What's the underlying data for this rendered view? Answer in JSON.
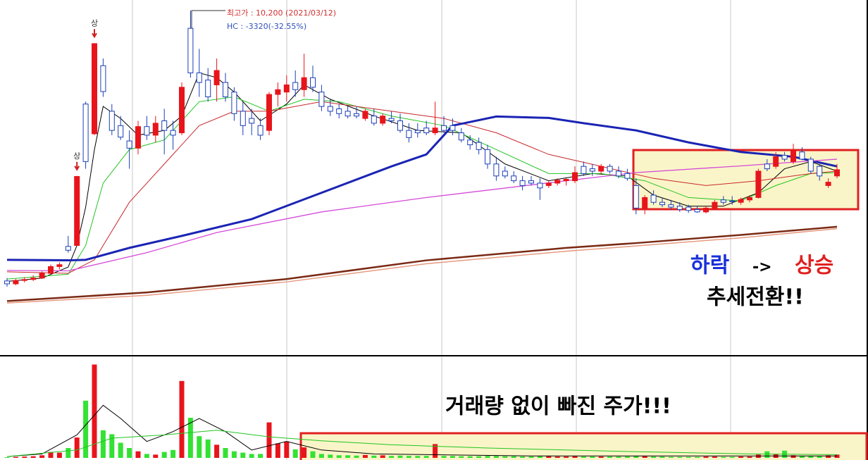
{
  "chart_data": {
    "type": "candlestick",
    "open": [
      4560,
      4500,
      4570,
      4590,
      4620,
      4720,
      4860,
      5280,
      5300,
      8250,
      7630,
      9050,
      8100,
      7800,
      7480,
      7330,
      7780,
      7600,
      7900,
      7700,
      7650,
      9830,
      8900,
      8750,
      8650,
      8700,
      8500,
      8100,
      7950,
      7800,
      7700,
      8450,
      8500,
      8700,
      8550,
      8800,
      8500,
      8200,
      8150,
      8100,
      8050,
      7950,
      8000,
      7850,
      7950,
      7900,
      7700,
      7700,
      7750,
      7650,
      7800,
      7800,
      7650,
      7500,
      7450,
      7300,
      7000,
      6850,
      6750,
      6650,
      6650,
      6600,
      6550,
      6600,
      6650,
      6650,
      6950,
      6900,
      6850,
      6950,
      6850,
      6800,
      6550,
      6080,
      6350,
      6200,
      6150,
      6120,
      6100,
      6050,
      6000,
      6080,
      6250,
      6230,
      6200,
      6250,
      6300,
      7000,
      6950,
      7180,
      7050,
      7250,
      7100,
      6950,
      6550,
      6750
    ],
    "high": [
      4620,
      4600,
      4640,
      4680,
      4760,
      4900,
      4950,
      5500,
      6750,
      8300,
      9520,
      9200,
      8250,
      8000,
      7700,
      7900,
      8000,
      8000,
      8150,
      7900,
      8700,
      10200,
      9400,
      9000,
      9200,
      8900,
      8600,
      8300,
      8150,
      7950,
      8500,
      8700,
      8850,
      8950,
      9300,
      9050,
      8650,
      8350,
      8250,
      8200,
      8200,
      8150,
      8150,
      8050,
      8100,
      8050,
      7850,
      7850,
      7900,
      8300,
      8000,
      7950,
      7750,
      7600,
      7550,
      7400,
      7150,
      6950,
      6850,
      6750,
      6750,
      6700,
      6650,
      6700,
      6700,
      6950,
      7050,
      7000,
      7000,
      7000,
      6950,
      6900,
      6700,
      6350,
      6450,
      6300,
      6250,
      6200,
      6150,
      6130,
      6120,
      6250,
      6330,
      6330,
      6300,
      6350,
      6900,
      7100,
      7250,
      7250,
      7420,
      7350,
      7150,
      7000,
      6700,
      7000
    ],
    "low": [
      4440,
      4470,
      4530,
      4560,
      4600,
      4700,
      4800,
      5150,
      5300,
      6900,
      7600,
      8400,
      7600,
      7500,
      6900,
      7200,
      7500,
      7450,
      7200,
      7300,
      7600,
      8800,
      8400,
      8300,
      8300,
      8300,
      7900,
      7600,
      7600,
      7500,
      7600,
      8200,
      8300,
      8400,
      8400,
      8500,
      8100,
      8000,
      7950,
      7950,
      7950,
      7900,
      7800,
      7800,
      7850,
      7650,
      7450,
      7550,
      7600,
      7600,
      7650,
      7600,
      7450,
      7300,
      7200,
      6900,
      6650,
      6700,
      6600,
      6450,
      6550,
      6250,
      6500,
      6550,
      6550,
      6600,
      6750,
      6750,
      6800,
      6800,
      6700,
      6650,
      5950,
      5950,
      6150,
      6100,
      6050,
      6000,
      5980,
      5980,
      5970,
      6050,
      6150,
      6150,
      6150,
      6200,
      6280,
      6850,
      6900,
      7050,
      7000,
      7080,
      6800,
      6650,
      6500,
      6700
    ],
    "close": [
      4500,
      4570,
      4590,
      4620,
      4720,
      4860,
      4900,
      5200,
      6740,
      7050,
      9510,
      8510,
      7700,
      7560,
      7330,
      7780,
      7600,
      7850,
      7700,
      7600,
      8600,
      8900,
      8700,
      8400,
      8950,
      8400,
      8050,
      7800,
      7850,
      7600,
      8450,
      8550,
      8650,
      8550,
      8800,
      8600,
      8200,
      8100,
      8050,
      8000,
      8000,
      8100,
      7850,
      8000,
      7900,
      7700,
      7550,
      7650,
      7650,
      7750,
      7700,
      7700,
      7500,
      7400,
      7300,
      7000,
      6750,
      6750,
      6650,
      6550,
      6600,
      6500,
      6600,
      6660,
      6680,
      6820,
      6800,
      6850,
      6950,
      6850,
      6750,
      6700,
      6080,
      6300,
      6200,
      6150,
      6100,
      6050,
      6030,
      6000,
      6080,
      6200,
      6200,
      6220,
      6260,
      6300,
      6850,
      6900,
      7150,
      7100,
      7280,
      7100,
      6850,
      6750,
      6620,
      6880
    ],
    "volume": [
      10,
      15,
      20,
      25,
      40,
      90,
      80,
      150,
      310,
      870,
      1420,
      420,
      360,
      230,
      150,
      100,
      60,
      50,
      90,
      120,
      1170,
      610,
      330,
      280,
      200,
      150,
      100,
      80,
      60,
      60,
      540,
      220,
      250,
      130,
      160,
      100,
      60,
      50,
      40,
      40,
      35,
      45,
      35,
      40,
      30,
      35,
      30,
      30,
      30,
      210,
      30,
      30,
      25,
      25,
      25,
      30,
      30,
      25,
      25,
      20,
      20,
      25,
      25,
      20,
      20,
      25,
      20,
      20,
      20,
      20,
      20,
      20,
      30,
      25,
      20,
      20,
      15,
      15,
      15,
      15,
      20,
      20,
      15,
      15,
      20,
      20,
      50,
      100,
      60,
      110,
      40,
      30,
      30,
      25,
      40,
      50
    ],
    "up_color": "#e8141b",
    "down_color": "#1c3fb8",
    "volume_up_color": "#e8141b",
    "volume_down_color": "#33e233",
    "ylim": [
      3000,
      10420
    ],
    "volume_lim": [
      0,
      1500
    ],
    "ma": [
      {
        "color": "#000000",
        "width": 1,
        "x": [
          0,
          4,
          7,
          8,
          9,
          10,
          11,
          13,
          15,
          18,
          20,
          22,
          24,
          26,
          29,
          32,
          34,
          37,
          42,
          47,
          52,
          57,
          62,
          67,
          71,
          74,
          78,
          82,
          86,
          89,
          92,
          95
        ],
        "values": [
          4550,
          4620,
          4850,
          5300,
          6100,
          7300,
          8200,
          7950,
          7600,
          7700,
          8000,
          8900,
          8800,
          8500,
          7900,
          8250,
          8650,
          8350,
          8000,
          7700,
          7650,
          7000,
          6650,
          6800,
          6750,
          6350,
          6120,
          6120,
          6400,
          6900,
          7050,
          6850
        ]
      },
      {
        "color": "#22c422",
        "width": 1,
        "x": [
          0,
          7,
          9,
          11,
          14,
          18,
          22,
          26,
          30,
          34,
          38,
          44,
          50,
          56,
          62,
          68,
          73,
          78,
          84,
          88,
          92,
          95
        ],
        "values": [
          4600,
          4700,
          5300,
          6600,
          7300,
          7500,
          8300,
          8400,
          8100,
          8350,
          8300,
          8000,
          7800,
          7300,
          6800,
          6800,
          6650,
          6300,
          6230,
          6550,
          6800,
          6820
        ]
      },
      {
        "color": "#c8282c",
        "width": 1,
        "x": [
          0,
          7,
          10,
          14,
          18,
          22,
          26,
          30,
          36,
          44,
          50,
          56,
          62,
          68,
          74,
          80,
          86,
          92,
          95
        ],
        "values": [
          4750,
          4720,
          5000,
          6200,
          7000,
          7800,
          8100,
          8100,
          8300,
          8100,
          7950,
          7650,
          7200,
          6950,
          6700,
          6550,
          6650,
          6800,
          6850
        ]
      },
      {
        "color": "#1a24b4",
        "width": 3,
        "x": [
          0,
          7,
          9,
          14,
          20,
          28,
          36,
          44,
          48,
          51,
          56,
          62,
          66,
          72,
          78,
          84,
          90,
          95
        ],
        "values": [
          5000,
          4990,
          5000,
          5250,
          5500,
          5850,
          6400,
          6950,
          7200,
          7800,
          7990,
          7960,
          7850,
          7700,
          7450,
          7250,
          7150,
          6950
        ]
      },
      {
        "color": "#d44ad8",
        "width": 1.3,
        "x": [
          0,
          7,
          16,
          24,
          36,
          48,
          64,
          72,
          84,
          95
        ],
        "values": [
          4780,
          4770,
          5150,
          5570,
          6000,
          6300,
          6650,
          6820,
          6960,
          7100
        ]
      },
      {
        "color": "#e69a80",
        "width": 1.5,
        "x": [
          0,
          16,
          32,
          48,
          64,
          72,
          84,
          95
        ],
        "values": [
          4100,
          4260,
          4540,
          4920,
          5180,
          5290,
          5460,
          5650
        ]
      },
      {
        "color": "#7a2a14",
        "width": 2.5,
        "x": [
          0,
          16,
          32,
          48,
          64,
          72,
          84,
          95
        ],
        "values": [
          4140,
          4320,
          4600,
          4990,
          5250,
          5350,
          5520,
          5690
        ]
      }
    ],
    "volume_ma": [
      {
        "color": "#000000",
        "x": [
          0,
          4,
          8,
          11,
          13,
          16,
          19,
          22,
          25,
          28,
          32,
          36,
          42,
          60,
          95
        ],
        "values": [
          20,
          60,
          350,
          800,
          600,
          250,
          400,
          600,
          400,
          120,
          250,
          120,
          60,
          30,
          30
        ]
      },
      {
        "color": "#22c422",
        "x": [
          0,
          8,
          12,
          18,
          24,
          30,
          36,
          44,
          55,
          70,
          85,
          95
        ],
        "values": [
          20,
          120,
          300,
          350,
          420,
          320,
          260,
          200,
          150,
          100,
          60,
          50
        ]
      }
    ],
    "limit_up": [
      {
        "x": 8,
        "label": "상"
      },
      {
        "x": 10,
        "label": "상"
      }
    ],
    "high_note": "최고가 : 10,200 (2021/03/12)",
    "hc_note": "HC : -3320(-32.55%)",
    "trend_down": "하락",
    "trend_arrow": "->",
    "trend_up": "상승",
    "trend_change": "추세전환!!",
    "volume_note": "거래량 없이 빠진 주가!!!"
  }
}
